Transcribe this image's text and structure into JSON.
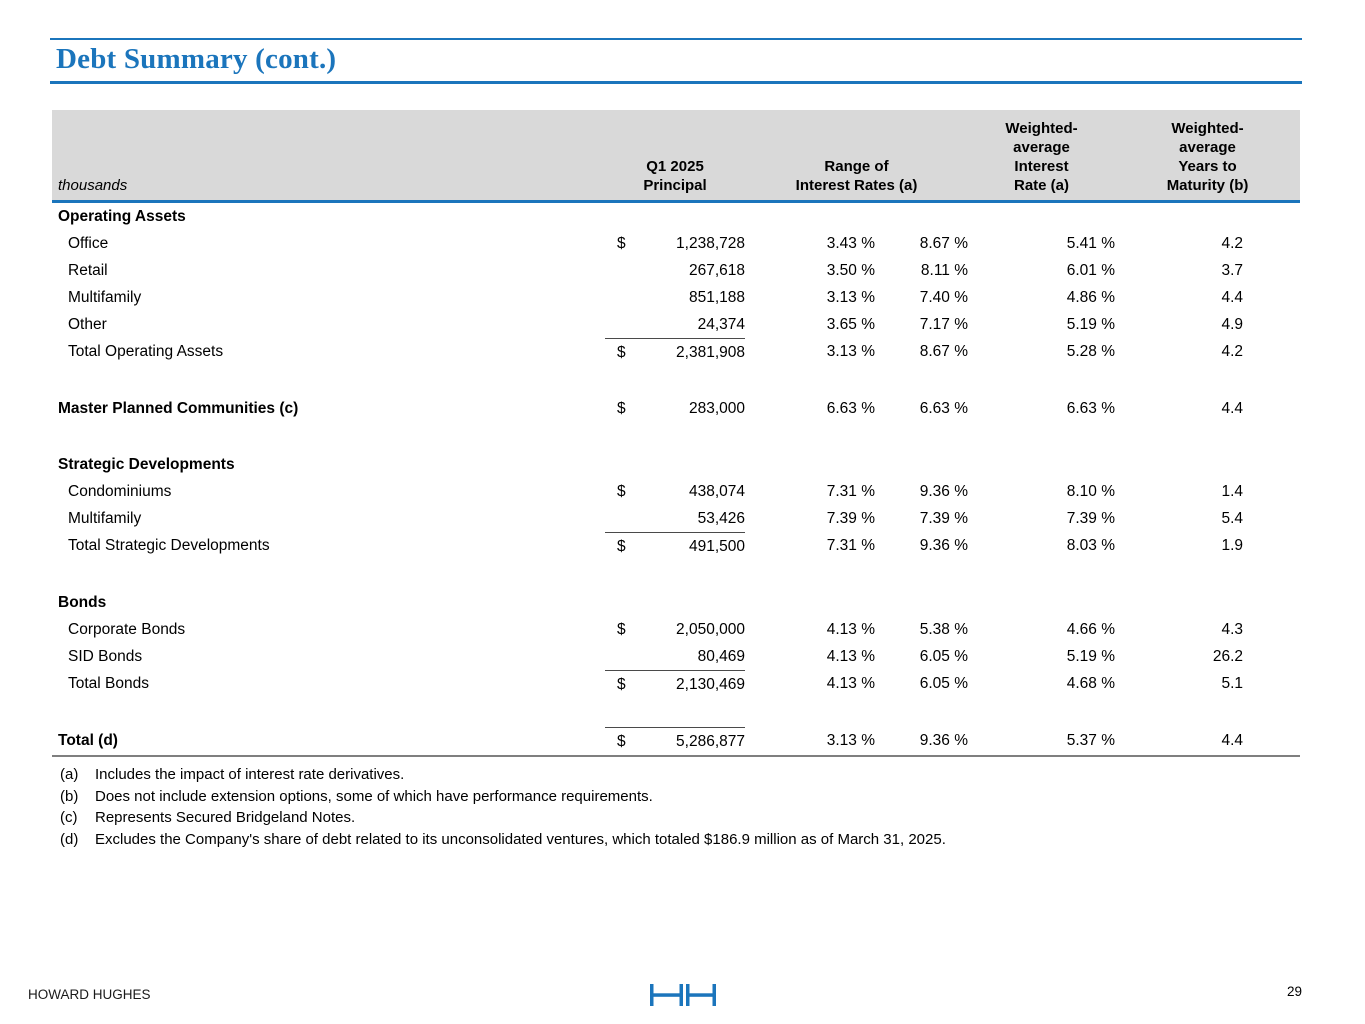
{
  "title": "Debt Summary (cont.)",
  "colors": {
    "accent_blue": "#1B75BC",
    "header_gray": "#D9D9D9",
    "total_rule_gray": "#7F7F7F"
  },
  "table": {
    "unit_label": "thousands",
    "columns": [
      "Q1 2025\nPrincipal",
      "Range of\nInterest Rates (a)",
      "Weighted-\naverage\nInterest\nRate (a)",
      "Weighted-\naverage\nYears to\nMaturity (b)"
    ],
    "rows": [
      {
        "type": "section",
        "label": "Operating Assets",
        "dollar": "",
        "principal": "",
        "rate_min": "",
        "rate_max": "",
        "wa_rate": "",
        "years": ""
      },
      {
        "type": "item",
        "label": "Office",
        "dollar": "$",
        "principal": "1,238,728",
        "rate_min": "3.43 %",
        "rate_max": "8.67 %",
        "wa_rate": "5.41 %",
        "years": "4.2"
      },
      {
        "type": "item",
        "label": "Retail",
        "dollar": "",
        "principal": "267,618",
        "rate_min": "3.50 %",
        "rate_max": "8.11 %",
        "wa_rate": "6.01 %",
        "years": "3.7"
      },
      {
        "type": "item",
        "label": "Multifamily",
        "dollar": "",
        "principal": "851,188",
        "rate_min": "3.13 %",
        "rate_max": "7.40 %",
        "wa_rate": "4.86 %",
        "years": "4.4"
      },
      {
        "type": "item",
        "label": "Other",
        "dollar": "",
        "principal": "24,374",
        "rate_min": "3.65 %",
        "rate_max": "7.17 %",
        "wa_rate": "5.19 %",
        "years": "4.9",
        "underline": true
      },
      {
        "type": "total",
        "label": "Total Operating Assets",
        "dollar": "$",
        "principal": "2,381,908",
        "rate_min": "3.13 %",
        "rate_max": "8.67 %",
        "wa_rate": "5.28 %",
        "years": "4.2"
      },
      {
        "type": "spacer"
      },
      {
        "type": "bold-item",
        "label": "Master Planned Communities (c)",
        "dollar": "$",
        "principal": "283,000",
        "rate_min": "6.63 %",
        "rate_max": "6.63 %",
        "wa_rate": "6.63 %",
        "years": "4.4"
      },
      {
        "type": "spacer"
      },
      {
        "type": "section",
        "label": "Strategic Developments",
        "dollar": "",
        "principal": "",
        "rate_min": "",
        "rate_max": "",
        "wa_rate": "",
        "years": ""
      },
      {
        "type": "item",
        "label": "Condominiums",
        "dollar": "$",
        "principal": "438,074",
        "rate_min": "7.31 %",
        "rate_max": "9.36 %",
        "wa_rate": "8.10 %",
        "years": "1.4"
      },
      {
        "type": "item",
        "label": "Multifamily",
        "dollar": "",
        "principal": "53,426",
        "rate_min": "7.39 %",
        "rate_max": "7.39 %",
        "wa_rate": "7.39 %",
        "years": "5.4",
        "underline": true
      },
      {
        "type": "total",
        "label": "Total Strategic Developments",
        "dollar": "$",
        "principal": "491,500",
        "rate_min": "7.31 %",
        "rate_max": "9.36 %",
        "wa_rate": "8.03 %",
        "years": "1.9"
      },
      {
        "type": "spacer"
      },
      {
        "type": "section",
        "label": "Bonds",
        "dollar": "",
        "principal": "",
        "rate_min": "",
        "rate_max": "",
        "wa_rate": "",
        "years": ""
      },
      {
        "type": "item",
        "label": "Corporate Bonds",
        "dollar": "$",
        "principal": "2,050,000",
        "rate_min": "4.13 %",
        "rate_max": "5.38 %",
        "wa_rate": "4.66 %",
        "years": "4.3"
      },
      {
        "type": "item",
        "label": "SID Bonds",
        "dollar": "",
        "principal": "80,469",
        "rate_min": "4.13 %",
        "rate_max": "6.05 %",
        "wa_rate": "5.19 %",
        "years": "26.2",
        "underline": true
      },
      {
        "type": "total",
        "label": "Total Bonds",
        "dollar": "$",
        "principal": "2,130,469",
        "rate_min": "4.13 %",
        "rate_max": "6.05 %",
        "wa_rate": "4.68 %",
        "years": "5.1"
      },
      {
        "type": "spacer"
      },
      {
        "type": "grand-total",
        "label": "Total (d)",
        "dollar": "$",
        "principal": "5,286,877",
        "rate_min": "3.13 %",
        "rate_max": "9.36 %",
        "wa_rate": "5.37 %",
        "years": "4.4"
      }
    ]
  },
  "footnotes": [
    {
      "marker": "(a)",
      "text": "Includes the impact of interest rate derivatives."
    },
    {
      "marker": "(b)",
      "text": "Does not include extension options, some of which have performance requirements."
    },
    {
      "marker": "(c)",
      "text": "Represents Secured Bridgeland Notes."
    },
    {
      "marker": "(d)",
      "text": "Excludes the Company's share of debt related to its unconsolidated ventures, which totaled $186.9 million as of March 31, 2025."
    }
  ],
  "footer": {
    "company": "HOWARD HUGHES",
    "page_number": "29",
    "logo": "hh-monogram-logo"
  }
}
